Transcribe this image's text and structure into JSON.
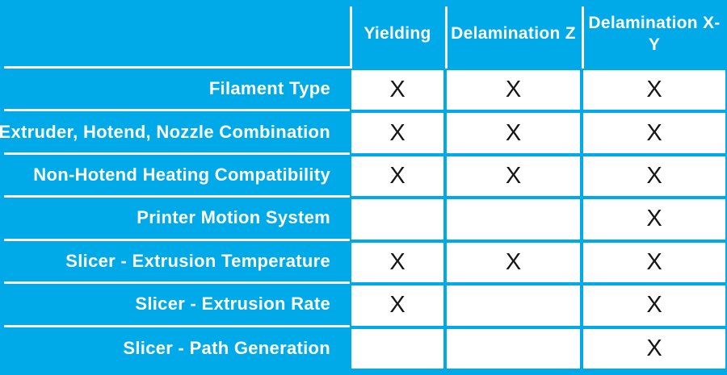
{
  "chart_data": {
    "type": "table",
    "columns": [
      "Yielding",
      "Delamination Z",
      "Delamination X-Y"
    ],
    "rows": [
      {
        "label": "Filament Type",
        "marks": [
          true,
          true,
          true
        ]
      },
      {
        "label": "Extruder, Hotend, Nozzle Combination",
        "marks": [
          true,
          true,
          true
        ]
      },
      {
        "label": "Non-Hotend Heating Compatibility",
        "marks": [
          true,
          true,
          true
        ]
      },
      {
        "label": "Printer Motion System",
        "marks": [
          false,
          false,
          true
        ]
      },
      {
        "label": "Slicer - Extrusion Temperature",
        "marks": [
          true,
          true,
          true
        ]
      },
      {
        "label": "Slicer - Extrusion Rate",
        "marks": [
          true,
          false,
          true
        ]
      },
      {
        "label": "Slicer - Path Generation",
        "marks": [
          false,
          false,
          true
        ]
      }
    ],
    "mark_symbol": "X",
    "legend_position": "none",
    "grid": "on"
  },
  "colors": {
    "background": "#00A9E8",
    "cell_background": "#FFFFFF",
    "divider": "#FFFFFF",
    "header_text": "#FFFFFF",
    "label_text": "#FFFFFF",
    "mark": "#161616"
  }
}
